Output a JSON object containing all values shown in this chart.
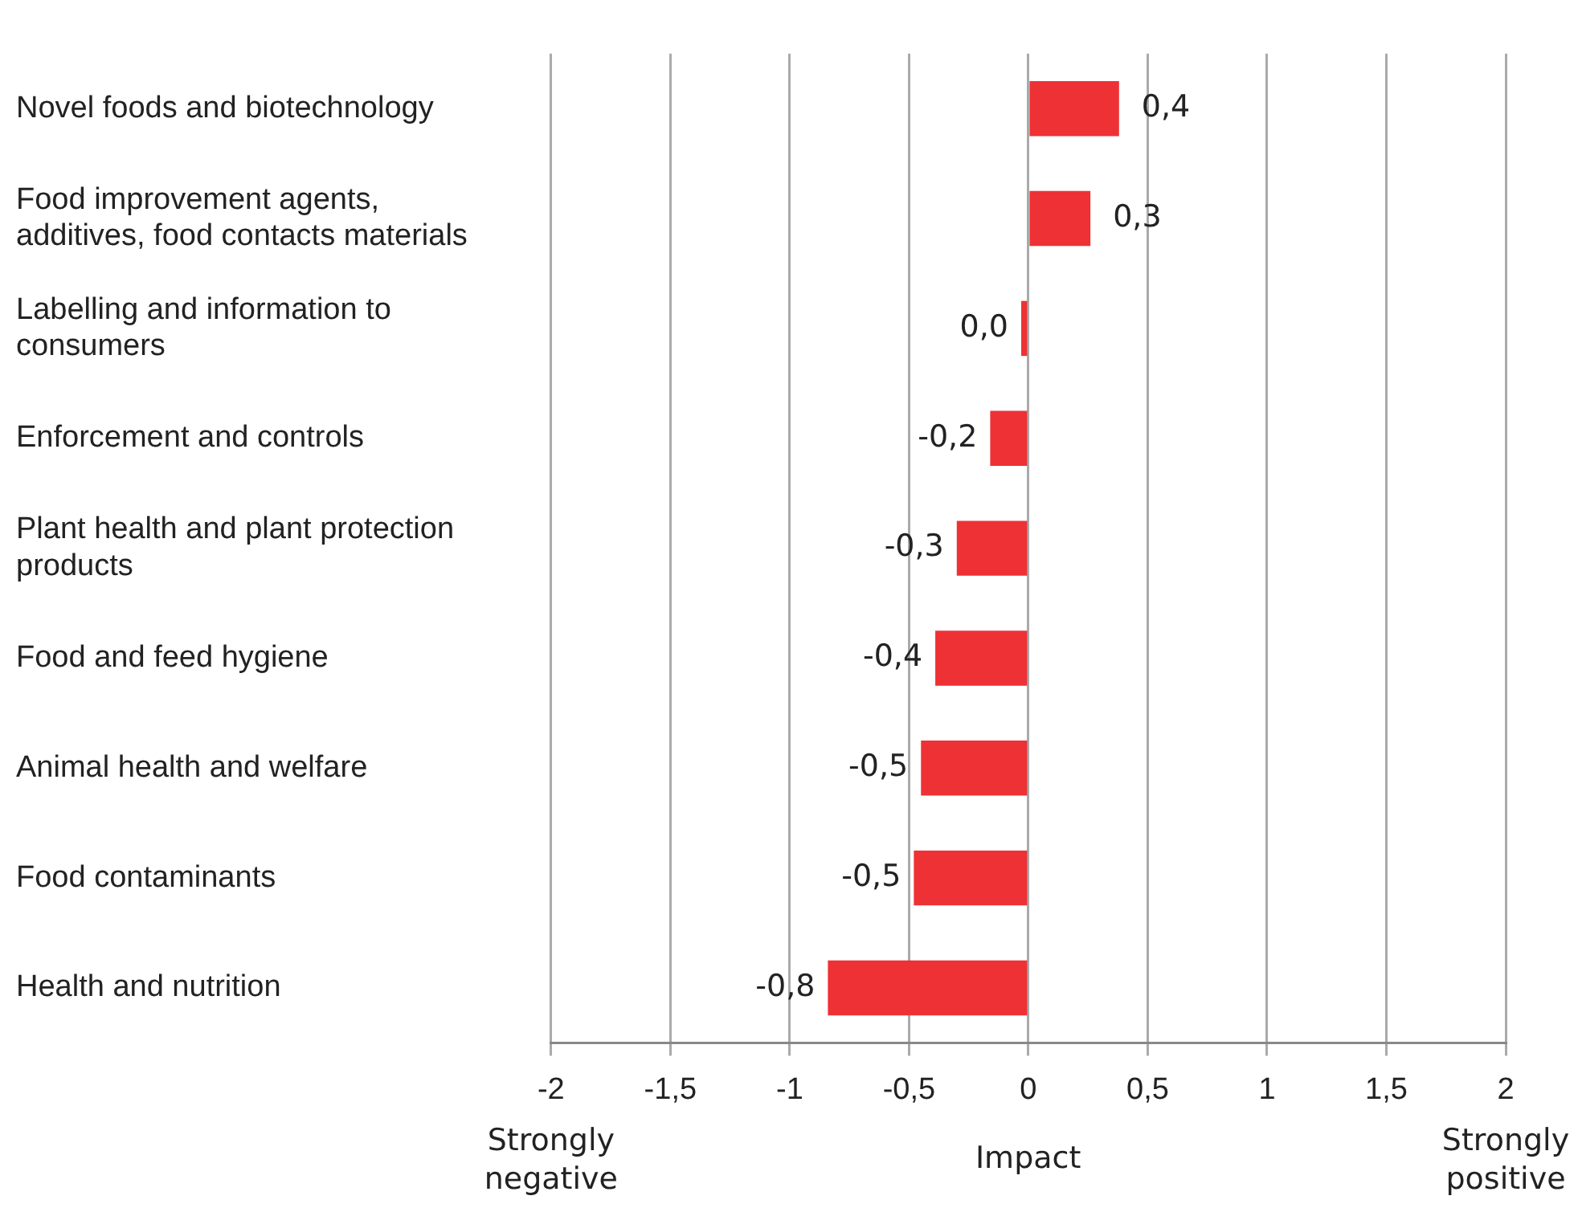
{
  "chart_data": {
    "type": "bar",
    "orientation": "horizontal",
    "xlabel": "Impact",
    "categories": [
      "Novel foods and biotechnology",
      "Food improvement agents, additives, food contacts materials",
      "Labelling and information to consumers",
      "Enforcement and controls",
      "Plant health and plant protection products",
      "Food and feed hygiene",
      "Animal health and welfare",
      "Food contaminants",
      "Health and nutrition"
    ],
    "values": [
      0.38,
      0.26,
      -0.03,
      -0.16,
      -0.3,
      -0.39,
      -0.45,
      -0.48,
      -0.84
    ],
    "value_labels": [
      "0,4",
      "0,3",
      "0,0",
      "-0,2",
      "-0,3",
      "-0,4",
      "-0,5",
      "-0,5",
      "-0,8"
    ],
    "color": "#ee3135",
    "xlim": [
      -2,
      2
    ],
    "xticks": [
      {
        "value": -2,
        "label": "-2"
      },
      {
        "value": -1.5,
        "label": "-1,5"
      },
      {
        "value": -1,
        "label": "-1"
      },
      {
        "value": -0.5,
        "label": "-0,5"
      },
      {
        "value": 0,
        "label": "0"
      },
      {
        "value": 0.5,
        "label": "0,5"
      },
      {
        "value": 1,
        "label": "1"
      },
      {
        "value": 1.5,
        "label": "1,5"
      },
      {
        "value": 2,
        "label": "2"
      }
    ],
    "grid": "x",
    "legend": false,
    "annotations": [
      "Strongly negative",
      "Strongly positive"
    ]
  }
}
